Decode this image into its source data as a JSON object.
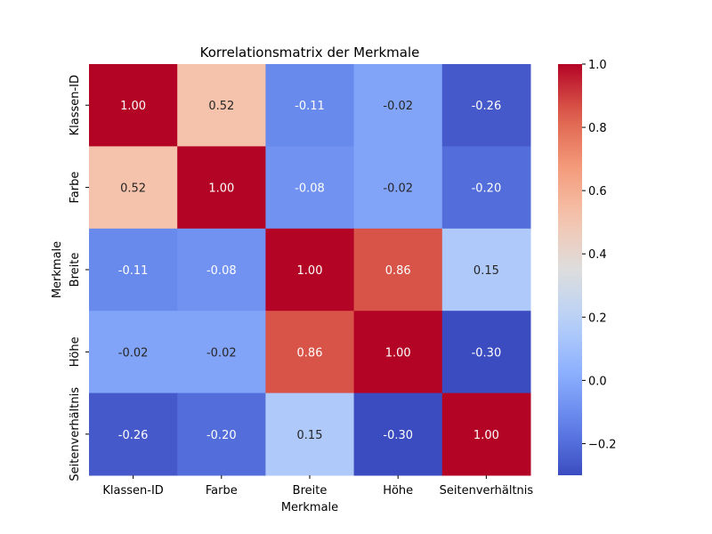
{
  "chart_data": {
    "type": "heatmap",
    "title": "Korrelationsmatrix der Merkmale",
    "xlabel": "Merkmale",
    "ylabel": "Merkmale",
    "x_categories": [
      "Klassen-ID",
      "Farbe",
      "Breite",
      "Höhe",
      "Seitenverhältnis"
    ],
    "y_categories": [
      "Klassen-ID",
      "Farbe",
      "Breite",
      "Höhe",
      "Seitenverhältnis"
    ],
    "values": [
      [
        1.0,
        0.52,
        -0.11,
        -0.02,
        -0.26
      ],
      [
        0.52,
        1.0,
        -0.08,
        -0.02,
        -0.2
      ],
      [
        -0.11,
        -0.08,
        1.0,
        0.86,
        0.15
      ],
      [
        -0.02,
        -0.02,
        0.86,
        1.0,
        -0.3
      ],
      [
        -0.26,
        -0.2,
        0.15,
        -0.3,
        1.0
      ]
    ],
    "cell_labels": [
      [
        "1.00",
        "0.52",
        "-0.11",
        "-0.02",
        "-0.26"
      ],
      [
        "0.52",
        "1.00",
        "-0.08",
        "-0.02",
        "-0.20"
      ],
      [
        "-0.11",
        "-0.08",
        "1.00",
        "0.86",
        "0.15"
      ],
      [
        "-0.02",
        "-0.02",
        "0.86",
        "1.00",
        "-0.30"
      ],
      [
        "-0.26",
        "-0.20",
        "0.15",
        "-0.30",
        "1.00"
      ]
    ],
    "colormap": "coolwarm",
    "color_range": [
      -0.3,
      1.0
    ],
    "colorbar_ticks": [
      1.0,
      0.8,
      0.6,
      0.4,
      0.2,
      0.0,
      -0.2
    ],
    "colorbar_tick_labels": [
      "1.0",
      "0.8",
      "0.6",
      "0.4",
      "0.2",
      "0.0",
      "−0.2"
    ],
    "legend": "colorbar-right",
    "grid": false
  }
}
